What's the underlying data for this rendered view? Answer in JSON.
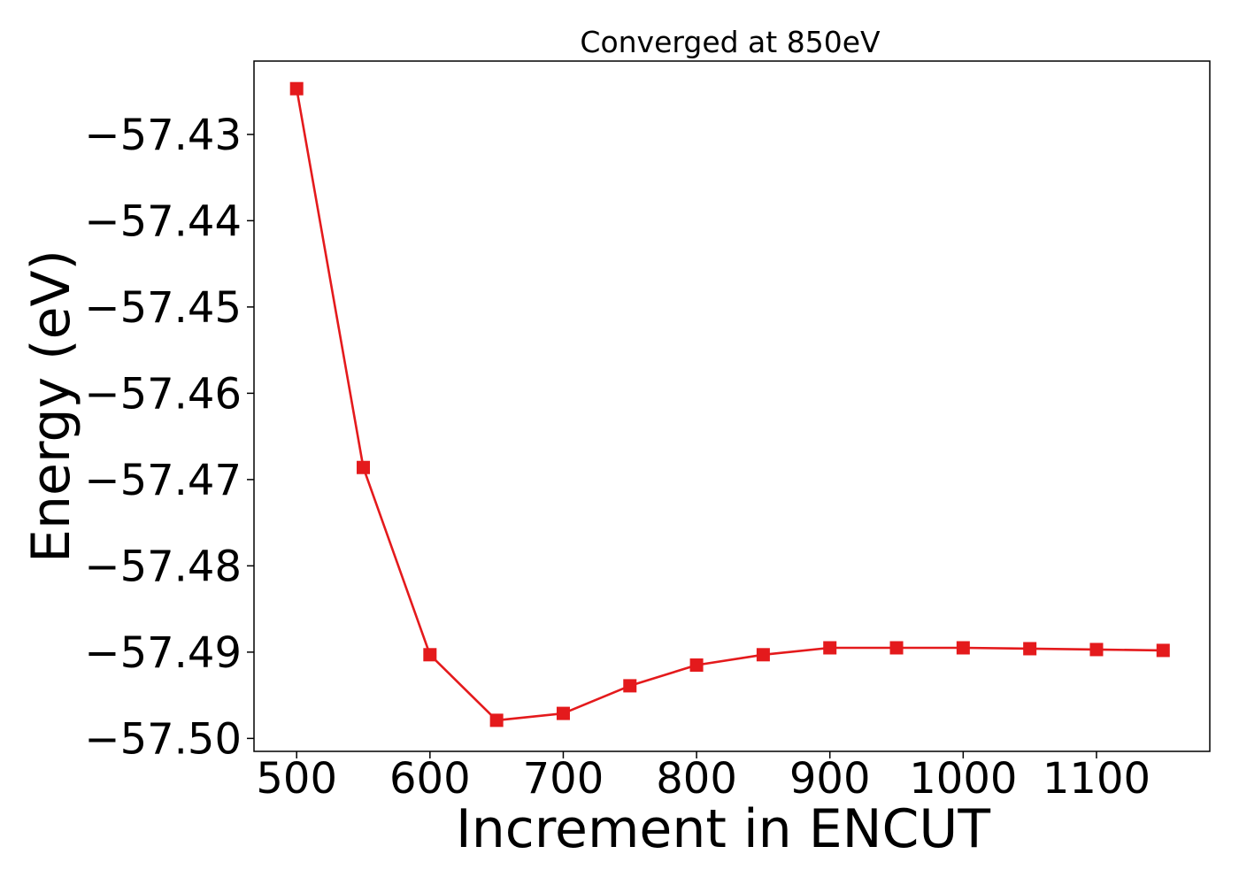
{
  "chart_data": {
    "type": "line",
    "title": "Converged at 850eV",
    "xlabel": "Increment in ENCUT",
    "ylabel": "Energy (eV)",
    "xlim": [
      468,
      1185
    ],
    "ylim": [
      -57.5015,
      -57.4215
    ],
    "x_ticks": [
      500,
      600,
      700,
      800,
      900,
      1000,
      1100
    ],
    "x_tick_labels": [
      "500",
      "600",
      "700",
      "800",
      "900",
      "1000",
      "1100"
    ],
    "y_ticks": [
      -57.43,
      -57.44,
      -57.45,
      -57.46,
      -57.47,
      -57.48,
      -57.49,
      -57.5
    ],
    "y_tick_labels": [
      "−57.43",
      "−57.44",
      "−57.45",
      "−57.46",
      "−57.47",
      "−57.48",
      "−57.49",
      "−57.50"
    ],
    "grid": false,
    "series": [
      {
        "color": "#e41a1c",
        "marker": "square",
        "x": [
          500,
          550,
          600,
          650,
          700,
          750,
          800,
          850,
          900,
          950,
          1000,
          1050,
          1100,
          1150
        ],
        "y": [
          -57.4247,
          -57.4686,
          -57.4903,
          -57.4979,
          -57.4971,
          -57.4939,
          -57.4915,
          -57.4903,
          -57.4895,
          -57.4895,
          -57.4895,
          -57.4896,
          -57.4897,
          -57.4898
        ]
      }
    ]
  }
}
